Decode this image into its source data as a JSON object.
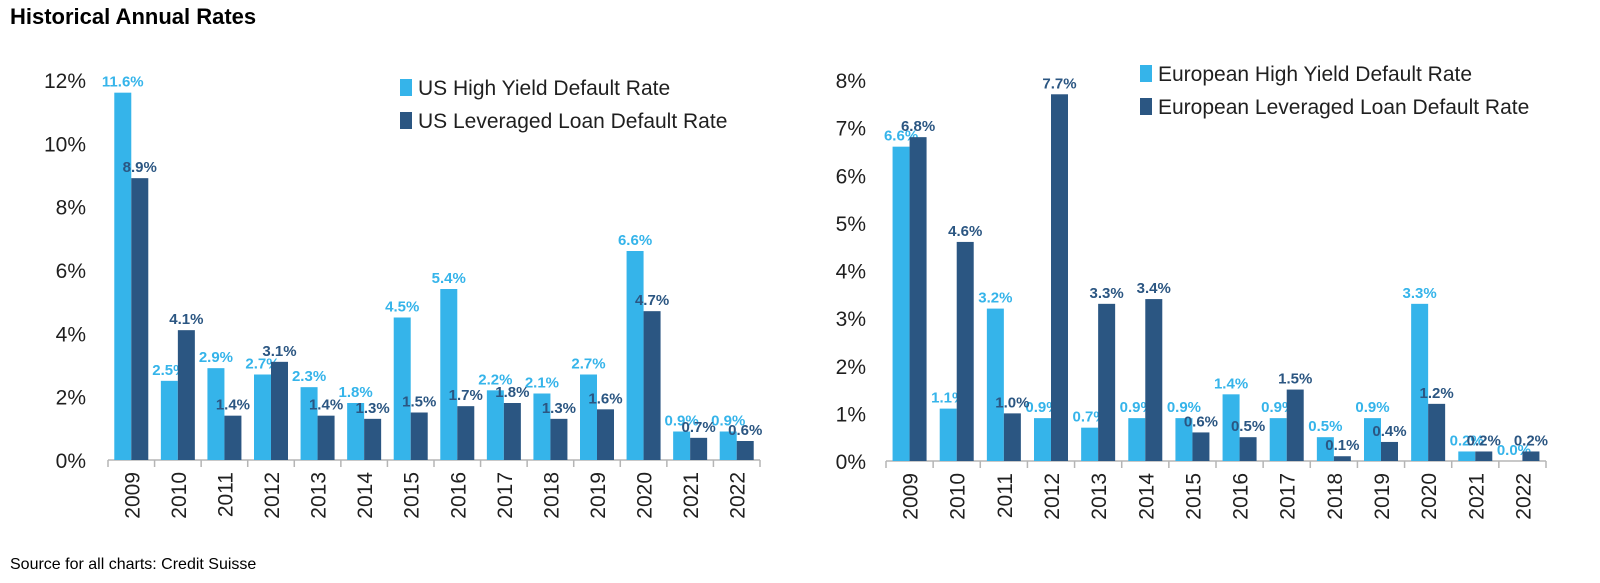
{
  "page": {
    "title": "Historical Annual Rates",
    "source": "Source for all charts: Credit Suisse"
  },
  "colors": {
    "light": "#35b4ea",
    "dark": "#2b5682",
    "axis": "#b5b5b5",
    "tick_text": "#1f1f1f"
  },
  "chart_data": [
    {
      "type": "bar",
      "categories": [
        "2009",
        "2010",
        "2011",
        "2012",
        "2013",
        "2014",
        "2015",
        "2016",
        "2017",
        "2018",
        "2019",
        "2020",
        "2021",
        "2022"
      ],
      "ylim": [
        0,
        12
      ],
      "yticks": [
        0,
        2,
        4,
        6,
        8,
        10,
        12
      ],
      "ytick_labels": [
        "0%",
        "2%",
        "4%",
        "6%",
        "8%",
        "10%",
        "12%"
      ],
      "grid": false,
      "legend_position": "top-right",
      "series": [
        {
          "name": "US High Yield Default Rate",
          "color": "#35b4ea",
          "values": [
            11.6,
            2.5,
            2.9,
            2.7,
            2.3,
            1.8,
            4.5,
            5.4,
            2.2,
            2.1,
            2.7,
            6.6,
            0.9,
            0.9
          ],
          "labels": [
            "11.6%",
            "2.5%",
            "2.9%",
            "2.7%",
            "2.3%",
            "1.8%",
            "4.5%",
            "5.4%",
            "2.2%",
            "2.1%",
            "2.7%",
            "6.6%",
            "0.9%",
            "0.9%"
          ]
        },
        {
          "name": "US Leveraged Loan Default Rate",
          "color": "#2b5682",
          "values": [
            8.9,
            4.1,
            1.4,
            3.1,
            1.4,
            1.3,
            1.5,
            1.7,
            1.8,
            1.3,
            1.6,
            4.7,
            0.7,
            0.6
          ],
          "labels": [
            "8.9%",
            "4.1%",
            "1.4%",
            "3.1%",
            "1.4%",
            "1.3%",
            "1.5%",
            "1.7%",
            "1.8%",
            "1.3%",
            "1.6%",
            "4.7%",
            "0.7%",
            "0.6%"
          ]
        }
      ]
    },
    {
      "type": "bar",
      "categories": [
        "2009",
        "2010",
        "2011",
        "2012",
        "2013",
        "2014",
        "2015",
        "2016",
        "2017",
        "2018",
        "2019",
        "2020",
        "2021",
        "2022"
      ],
      "ylim": [
        0,
        8
      ],
      "yticks": [
        0,
        1,
        2,
        3,
        4,
        5,
        6,
        7,
        8
      ],
      "ytick_labels": [
        "0%",
        "1%",
        "2%",
        "3%",
        "4%",
        "5%",
        "6%",
        "7%",
        "8%"
      ],
      "grid": false,
      "legend_position": "top-right",
      "series": [
        {
          "name": "European High Yield Default Rate",
          "color": "#35b4ea",
          "values": [
            6.6,
            1.1,
            3.2,
            0.9,
            0.7,
            0.9,
            0.9,
            1.4,
            0.9,
            0.5,
            0.9,
            3.3,
            0.2,
            0.0
          ],
          "labels": [
            "6.6%",
            "1.1%",
            "3.2%",
            "0.9%",
            "0.7%",
            "0.9%",
            "0.9%",
            "1.4%",
            "0.9%",
            "0.5%",
            "0.9%",
            "3.3%",
            "0.2%",
            "0.0%"
          ]
        },
        {
          "name": "European Leveraged Loan Default Rate",
          "color": "#2b5682",
          "values": [
            6.8,
            4.6,
            1.0,
            7.7,
            3.3,
            3.4,
            0.6,
            0.5,
            1.5,
            0.1,
            0.4,
            1.2,
            0.2,
            0.2
          ],
          "labels": [
            "6.8%",
            "4.6%",
            "1.0%",
            "7.7%",
            "3.3%",
            "3.4%",
            "0.6%",
            "0.5%",
            "1.5%",
            "0.1%",
            "0.4%",
            "1.2%",
            "0.2%",
            "0.2%"
          ]
        }
      ]
    }
  ]
}
